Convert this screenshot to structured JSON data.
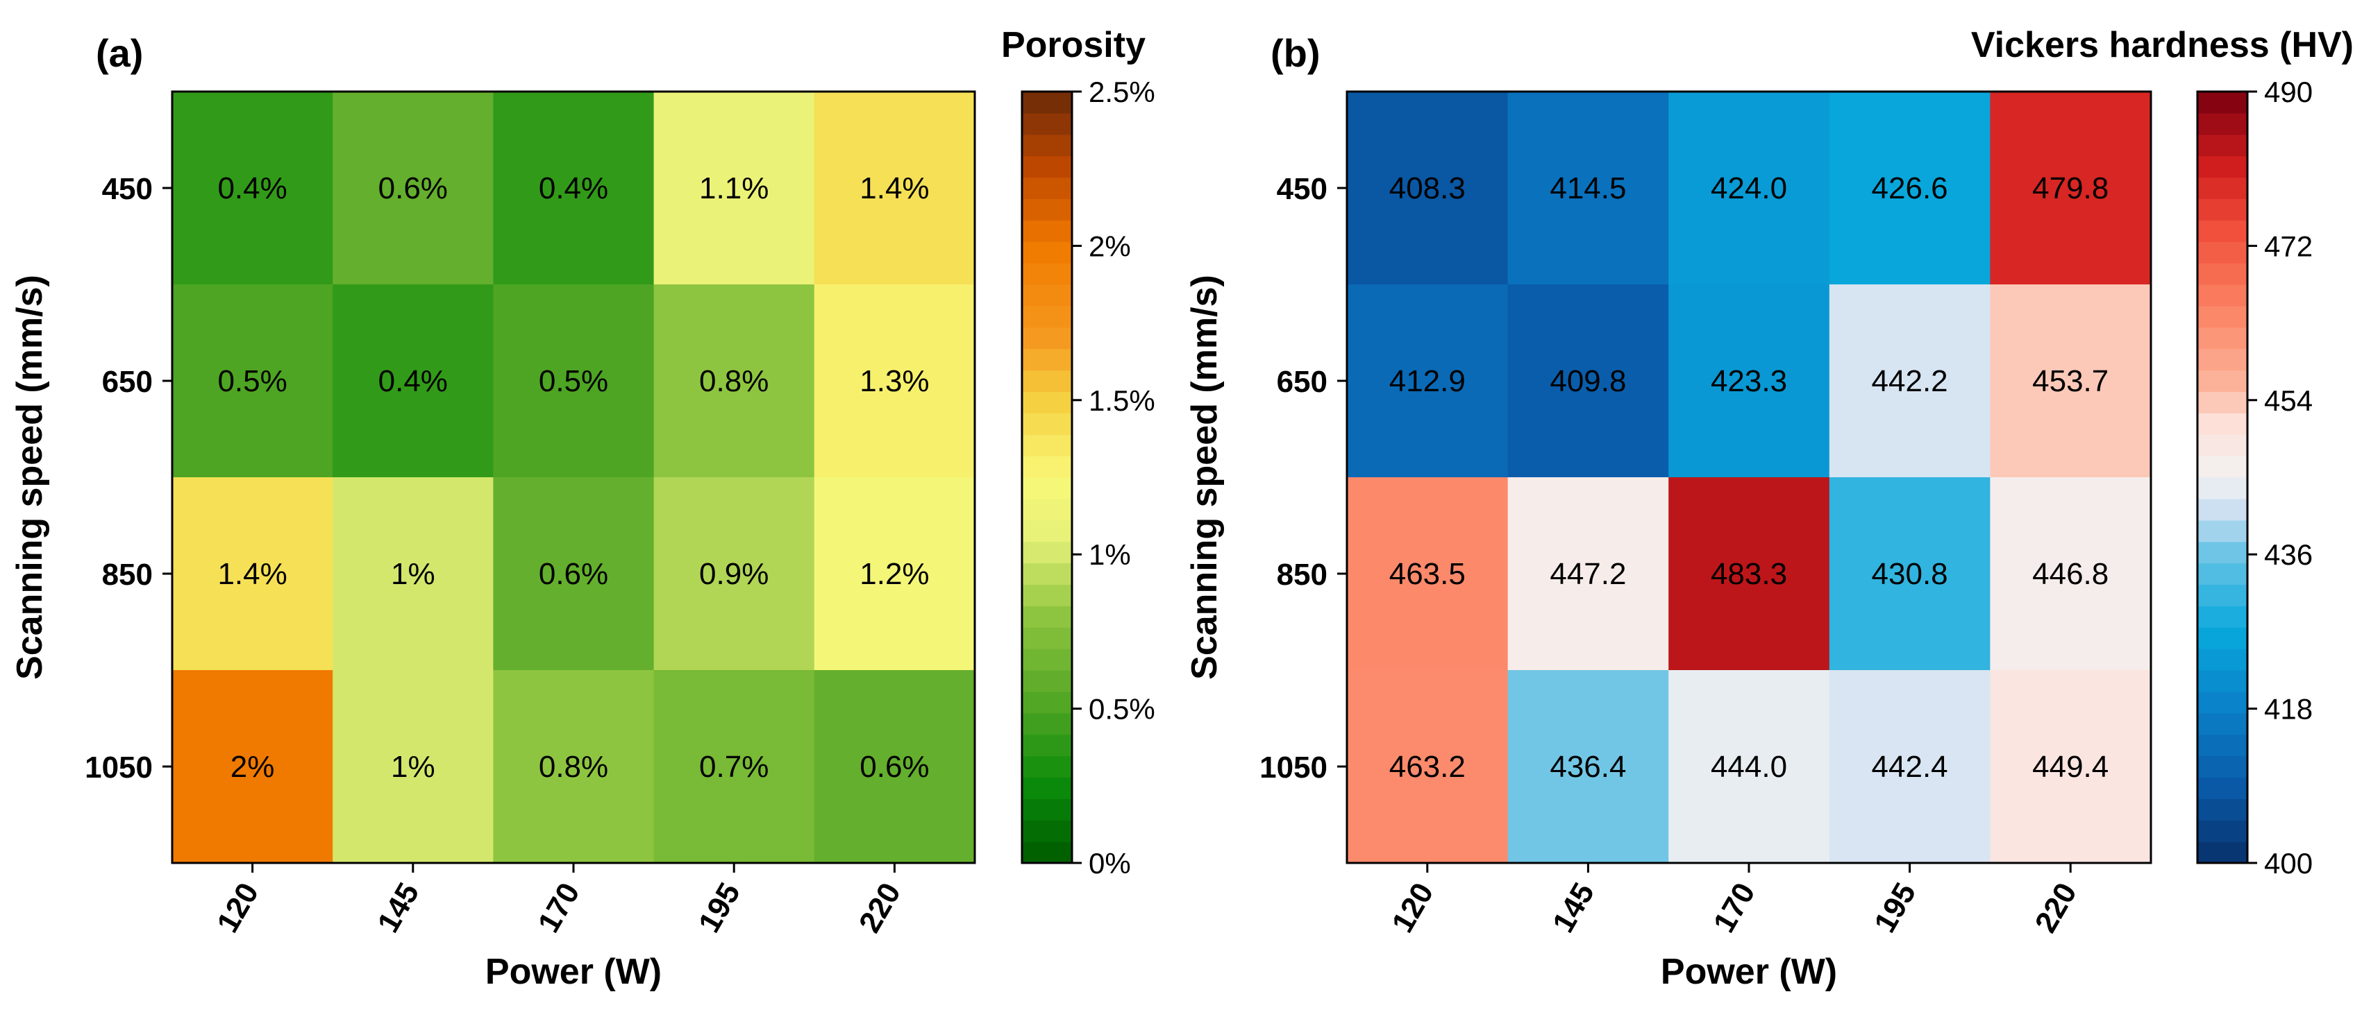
{
  "chart_data": [
    {
      "type": "heatmap",
      "panel_label": "(a)",
      "colorbar_title": "Porosity",
      "xlabel": "Power (W)",
      "ylabel": "Scanning speed (mm/s)",
      "x_categories": [
        "120",
        "145",
        "170",
        "195",
        "220"
      ],
      "y_categories": [
        "450",
        "650",
        "850",
        "1050"
      ],
      "values": [
        [
          0.4,
          0.6,
          0.4,
          1.1,
          1.4
        ],
        [
          0.5,
          0.4,
          0.5,
          0.8,
          1.3
        ],
        [
          1.4,
          1.0,
          0.6,
          0.9,
          1.2
        ],
        [
          2.0,
          1.0,
          0.8,
          0.7,
          0.6
        ]
      ],
      "labels": [
        [
          "0.4%",
          "0.6%",
          "0.4%",
          "1.1%",
          "1.4%"
        ],
        [
          "0.5%",
          "0.4%",
          "0.5%",
          "0.8%",
          "1.3%"
        ],
        [
          "1.4%",
          "1%",
          "0.6%",
          "0.9%",
          "1.2%"
        ],
        [
          "2%",
          "1%",
          "0.8%",
          "0.7%",
          "0.6%"
        ]
      ],
      "colorbar_range": [
        0,
        2.5
      ],
      "colorbar_ticks": [
        {
          "value": 0,
          "label": "0%"
        },
        {
          "value": 0.5,
          "label": "0.5%"
        },
        {
          "value": 1,
          "label": "1%"
        },
        {
          "value": 1.5,
          "label": "1.5%"
        },
        {
          "value": 2,
          "label": "2%"
        },
        {
          "value": 2.5,
          "label": "2.5%"
        }
      ],
      "colormap": [
        "#005a00",
        "#0a8a0a",
        "#5aaa28",
        "#8ec540",
        "#e6f078",
        "#f8f878",
        "#f5d040",
        "#f59a20",
        "#f07a00",
        "#c04800",
        "#6a2a08"
      ],
      "colormap_stops": [
        0,
        0.1,
        0.22,
        0.32,
        0.42,
        0.5,
        0.6,
        0.68,
        0.8,
        0.9,
        1.0
      ]
    },
    {
      "type": "heatmap",
      "panel_label": "(b)",
      "colorbar_title": "Vickers hardness (HV)",
      "xlabel": "Power (W)",
      "ylabel": "Scanning speed (mm/s)",
      "x_categories": [
        "120",
        "145",
        "170",
        "195",
        "220"
      ],
      "y_categories": [
        "450",
        "650",
        "850",
        "1050"
      ],
      "values": [
        [
          408.3,
          414.5,
          424.0,
          426.6,
          479.8
        ],
        [
          412.9,
          409.8,
          423.3,
          442.2,
          453.7
        ],
        [
          463.5,
          447.2,
          483.3,
          430.8,
          446.8
        ],
        [
          463.2,
          436.4,
          444.0,
          442.4,
          449.4
        ]
      ],
      "labels": [
        [
          "408.3",
          "414.5",
          "424.0",
          "426.6",
          "479.8"
        ],
        [
          "412.9",
          "409.8",
          "423.3",
          "442.2",
          "453.7"
        ],
        [
          "463.5",
          "447.2",
          "483.3",
          "430.8",
          "446.8"
        ],
        [
          "463.2",
          "436.4",
          "444.0",
          "442.4",
          "449.4"
        ]
      ],
      "colorbar_range": [
        400,
        490
      ],
      "colorbar_ticks": [
        {
          "value": 400,
          "label": "400"
        },
        {
          "value": 418,
          "label": "418"
        },
        {
          "value": 436,
          "label": "436"
        },
        {
          "value": 454,
          "label": "454"
        },
        {
          "value": 472,
          "label": "472"
        },
        {
          "value": 490,
          "label": "490"
        }
      ],
      "colormap": [
        "#08306b",
        "#0a5aa8",
        "#0a80c8",
        "#08a8dc",
        "#6ac4e4",
        "#c6dcf2",
        "#f2f2f2",
        "#fde0d8",
        "#fcb49c",
        "#fb8262",
        "#f0503c",
        "#d21e1e",
        "#7a0010"
      ],
      "colormap_stops": [
        0,
        0.1,
        0.2,
        0.3,
        0.4,
        0.45,
        0.5,
        0.57,
        0.62,
        0.72,
        0.82,
        0.9,
        1.0
      ]
    }
  ]
}
